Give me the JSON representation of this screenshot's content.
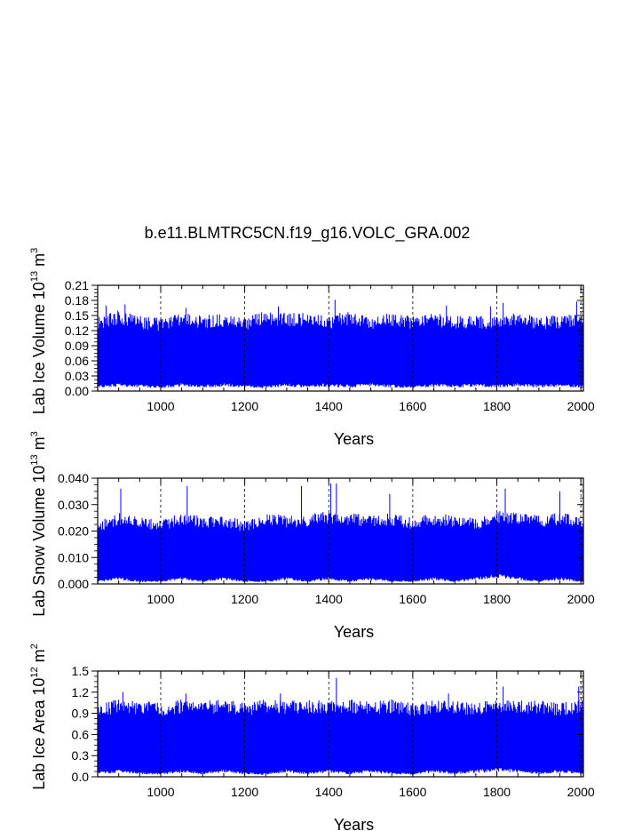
{
  "title": "b.e11.BLMTRC5CN.f19_g16.VOLC_GRA.002",
  "series_color": "#0000ff",
  "chart_data": [
    {
      "type": "line",
      "name": "lab-ice-volume",
      "ylabel": "Lab Ice Volume 10",
      "ylabel_exp": "13",
      "ylabel_unit": " m",
      "ylabel_unit_exp": "3",
      "xlabel": "Years",
      "xlim": [
        850,
        2006
      ],
      "ylim": [
        0,
        0.21
      ],
      "xticks": [
        1000,
        1200,
        1400,
        1600,
        1800,
        2000
      ],
      "yticks": [
        "0.00",
        "0.03",
        "0.06",
        "0.09",
        "0.12",
        "0.15",
        "0.18",
        "0.21"
      ],
      "grid_x": true,
      "envelope": {
        "x": [
          850,
          900,
          950,
          1000,
          1050,
          1100,
          1150,
          1200,
          1250,
          1300,
          1350,
          1400,
          1450,
          1500,
          1550,
          1600,
          1650,
          1700,
          1750,
          1800,
          1850,
          1900,
          1950,
          2000
        ],
        "max": [
          0.15,
          0.16,
          0.15,
          0.145,
          0.155,
          0.15,
          0.155,
          0.145,
          0.16,
          0.155,
          0.155,
          0.15,
          0.16,
          0.15,
          0.155,
          0.15,
          0.155,
          0.15,
          0.15,
          0.15,
          0.155,
          0.15,
          0.15,
          0.155
        ],
        "min": [
          0.01,
          0.012,
          0.01,
          0.008,
          0.012,
          0.01,
          0.012,
          0.01,
          0.008,
          0.012,
          0.01,
          0.012,
          0.01,
          0.012,
          0.01,
          0.008,
          0.012,
          0.01,
          0.012,
          0.01,
          0.012,
          0.01,
          0.012,
          0.01
        ]
      },
      "peaks": [
        [
          870,
          0.17
        ],
        [
          915,
          0.172
        ],
        [
          1060,
          0.165
        ],
        [
          1280,
          0.168
        ],
        [
          1415,
          0.181
        ],
        [
          1680,
          0.17
        ],
        [
          1785,
          0.168
        ],
        [
          1815,
          0.175
        ],
        [
          1990,
          0.178
        ]
      ]
    },
    {
      "type": "line",
      "name": "lab-snow-volume",
      "ylabel": "Lab Snow Volume 10",
      "ylabel_exp": "13",
      "ylabel_unit": " m",
      "ylabel_unit_exp": "3",
      "xlabel": "Years",
      "xlim": [
        850,
        2006
      ],
      "ylim": [
        0,
        0.04
      ],
      "xticks": [
        1000,
        1200,
        1400,
        1600,
        1800,
        2000
      ],
      "yticks": [
        "0.000",
        "0.010",
        "0.020",
        "0.030",
        "0.040"
      ],
      "grid_x": true,
      "envelope": {
        "x": [
          850,
          900,
          950,
          1000,
          1050,
          1100,
          1150,
          1200,
          1250,
          1300,
          1350,
          1400,
          1450,
          1500,
          1550,
          1600,
          1650,
          1700,
          1750,
          1800,
          1850,
          1900,
          1950,
          2000
        ],
        "max": [
          0.024,
          0.027,
          0.026,
          0.024,
          0.027,
          0.026,
          0.026,
          0.024,
          0.027,
          0.026,
          0.026,
          0.028,
          0.027,
          0.026,
          0.027,
          0.025,
          0.027,
          0.026,
          0.025,
          0.028,
          0.027,
          0.026,
          0.027,
          0.026
        ],
        "min": [
          0.001,
          0.002,
          0.001,
          0.001,
          0.002,
          0.001,
          0.002,
          0.001,
          0.001,
          0.002,
          0.001,
          0.002,
          0.001,
          0.002,
          0.001,
          0.001,
          0.002,
          0.001,
          0.002,
          0.003,
          0.002,
          0.001,
          0.002,
          0.001
        ]
      },
      "peaks": [
        [
          905,
          0.036
        ],
        [
          1063,
          0.037
        ],
        [
          1335,
          0.037
        ],
        [
          1405,
          0.038
        ],
        [
          1418,
          0.038
        ],
        [
          1545,
          0.034
        ],
        [
          1820,
          0.036
        ],
        [
          1950,
          0.035
        ]
      ]
    },
    {
      "type": "line",
      "name": "lab-ice-area",
      "ylabel": "Lab Ice Area 10",
      "ylabel_exp": "12",
      "ylabel_unit": " m",
      "ylabel_unit_exp": "2",
      "xlabel": "Years",
      "xlim": [
        850,
        2006
      ],
      "ylim": [
        0,
        1.5
      ],
      "xticks": [
        1000,
        1200,
        1400,
        1600,
        1800,
        2000
      ],
      "yticks": [
        "0.0",
        "0.3",
        "0.6",
        "0.9",
        "1.2",
        "1.5"
      ],
      "grid_x": true,
      "envelope": {
        "x": [
          850,
          900,
          950,
          1000,
          1050,
          1100,
          1150,
          1200,
          1250,
          1300,
          1350,
          1400,
          1450,
          1500,
          1550,
          1600,
          1650,
          1700,
          1750,
          1800,
          1850,
          1900,
          1950,
          2000
        ],
        "max": [
          1.05,
          1.1,
          1.08,
          1.05,
          1.1,
          1.08,
          1.1,
          1.05,
          1.1,
          1.08,
          1.1,
          1.08,
          1.1,
          1.08,
          1.1,
          1.05,
          1.1,
          1.08,
          1.05,
          1.1,
          1.08,
          1.1,
          1.05,
          1.1
        ],
        "min": [
          0.05,
          0.08,
          0.05,
          0.04,
          0.08,
          0.05,
          0.08,
          0.05,
          0.04,
          0.08,
          0.05,
          0.08,
          0.05,
          0.08,
          0.05,
          0.04,
          0.08,
          0.05,
          0.08,
          0.1,
          0.08,
          0.05,
          0.08,
          0.05
        ]
      },
      "peaks": [
        [
          910,
          1.2
        ],
        [
          1060,
          1.18
        ],
        [
          1285,
          1.18
        ],
        [
          1418,
          1.4
        ],
        [
          1685,
          1.18
        ],
        [
          1815,
          1.28
        ],
        [
          1995,
          1.28
        ]
      ]
    }
  ]
}
